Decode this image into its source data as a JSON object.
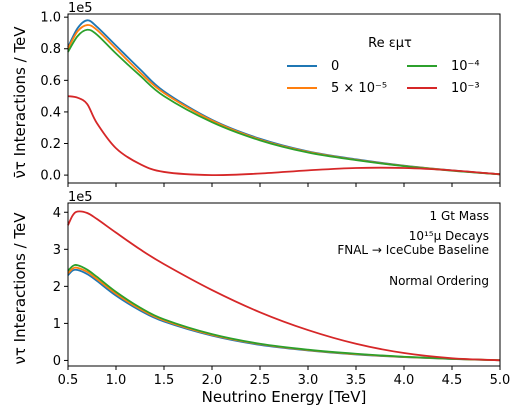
{
  "chart_data": [
    {
      "type": "line",
      "panel": "top",
      "ylabel": "ν̄τ Interactions / TeV",
      "xlabel": "",
      "y_offset_label": "1e5",
      "ylim": [
        -0.05,
        1.02
      ],
      "yticks": [
        0.0,
        0.2,
        0.4,
        0.6,
        0.8,
        1.0
      ],
      "ytick_labels": [
        "0.0",
        "0.2",
        "0.4",
        "0.6",
        "0.8",
        "1.0"
      ],
      "grid": false,
      "legend": {
        "title": "Re εμτ",
        "placement": "top-right",
        "columns": 2,
        "entries": [
          "0",
          "5 × 10⁻⁵",
          "10⁻⁴",
          "10⁻³"
        ]
      },
      "x": [
        0.5,
        0.6,
        0.7,
        0.8,
        1.0,
        1.25,
        1.5,
        2.0,
        2.5,
        3.0,
        3.5,
        4.0,
        4.5,
        5.0
      ],
      "series": [
        {
          "name": "0",
          "color": "#1f77b4",
          "values": [
            0.81,
            0.93,
            0.98,
            0.94,
            0.82,
            0.67,
            0.53,
            0.35,
            0.23,
            0.15,
            0.1,
            0.06,
            0.03,
            0.005
          ]
        },
        {
          "name": "5 × 10⁻⁵",
          "color": "#ff7f0e",
          "values": [
            0.8,
            0.91,
            0.95,
            0.92,
            0.8,
            0.65,
            0.52,
            0.345,
            0.225,
            0.147,
            0.097,
            0.058,
            0.029,
            0.005
          ]
        },
        {
          "name": "10⁻⁴",
          "color": "#2ca02c",
          "values": [
            0.78,
            0.88,
            0.92,
            0.89,
            0.77,
            0.63,
            0.5,
            0.335,
            0.22,
            0.143,
            0.095,
            0.057,
            0.028,
            0.005
          ]
        },
        {
          "name": "10⁻³",
          "color": "#d62728",
          "values": [
            0.5,
            0.49,
            0.45,
            0.33,
            0.17,
            0.07,
            0.02,
            0.0,
            0.01,
            0.03,
            0.045,
            0.045,
            0.03,
            0.005
          ]
        }
      ]
    },
    {
      "type": "line",
      "panel": "bottom",
      "ylabel": "ντ Interactions / TeV",
      "xlabel": "Neutrino Energy [TeV]",
      "y_offset_label": "1e5",
      "xlim": [
        0.5,
        5.0
      ],
      "ylim": [
        -0.15,
        4.25
      ],
      "xticks": [
        0.5,
        1.0,
        1.5,
        2.0,
        2.5,
        3.0,
        3.5,
        4.0,
        4.5,
        5.0
      ],
      "xtick_labels": [
        "0.5",
        "1.0",
        "1.5",
        "2.0",
        "2.5",
        "3.0",
        "3.5",
        "4.0",
        "4.5",
        "5.0"
      ],
      "yticks": [
        0,
        1,
        2,
        3,
        4
      ],
      "ytick_labels": [
        "0",
        "1",
        "2",
        "3",
        "4"
      ],
      "grid": false,
      "annotations": [
        "1 Gt Mass",
        "10¹⁵μ Decays",
        "FNAL → IceCube Baseline",
        "Normal Ordering"
      ],
      "x": [
        0.5,
        0.55,
        0.6,
        0.7,
        0.8,
        1.0,
        1.25,
        1.5,
        2.0,
        2.5,
        3.0,
        3.5,
        4.0,
        4.5,
        5.0
      ],
      "series": [
        {
          "name": "0",
          "color": "#1f77b4",
          "values": [
            2.3,
            2.43,
            2.44,
            2.33,
            2.15,
            1.75,
            1.35,
            1.05,
            0.67,
            0.42,
            0.27,
            0.16,
            0.09,
            0.04,
            0.005
          ]
        },
        {
          "name": "5 × 10⁻⁵",
          "color": "#ff7f0e",
          "values": [
            2.35,
            2.48,
            2.5,
            2.39,
            2.2,
            1.8,
            1.39,
            1.08,
            0.69,
            0.44,
            0.28,
            0.17,
            0.095,
            0.042,
            0.005
          ]
        },
        {
          "name": "10⁻⁴",
          "color": "#2ca02c",
          "values": [
            2.42,
            2.55,
            2.57,
            2.45,
            2.26,
            1.85,
            1.43,
            1.11,
            0.71,
            0.45,
            0.29,
            0.18,
            0.1,
            0.044,
            0.005
          ]
        },
        {
          "name": "10⁻³",
          "color": "#d62728",
          "values": [
            3.65,
            3.92,
            4.02,
            3.98,
            3.82,
            3.45,
            3.0,
            2.6,
            1.9,
            1.3,
            0.82,
            0.45,
            0.2,
            0.06,
            0.005
          ]
        }
      ]
    }
  ]
}
